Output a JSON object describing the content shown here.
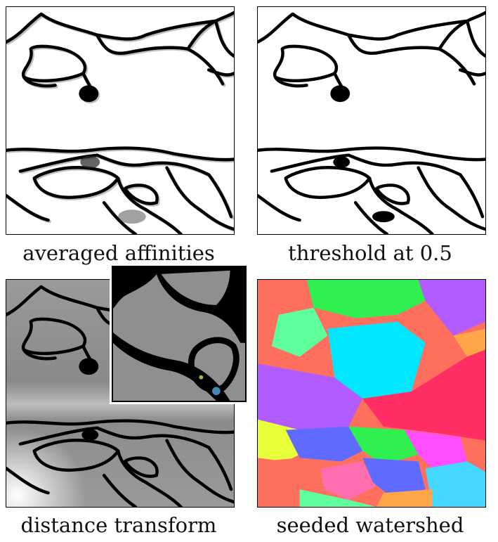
{
  "panels": [
    {
      "id": "averaged-affinities",
      "caption": "averaged affinities"
    },
    {
      "id": "threshold",
      "caption": "threshold at 0.5"
    },
    {
      "id": "distance-transform",
      "caption": "distance transform"
    },
    {
      "id": "seeded-watershed",
      "caption": "seeded watershed"
    }
  ],
  "colors": {
    "membrane": "#000000",
    "background": "#ffffff",
    "distance_gray": "#8c8c8c",
    "watershed": [
      "#ff6f5e",
      "#2ff050",
      "#ff4dff",
      "#00e7ff",
      "#ff2f66",
      "#b25cff",
      "#5f6bff",
      "#ffa54a",
      "#60ff9e",
      "#e8ff3a",
      "#ff6fb0",
      "#44d8ff"
    ]
  }
}
